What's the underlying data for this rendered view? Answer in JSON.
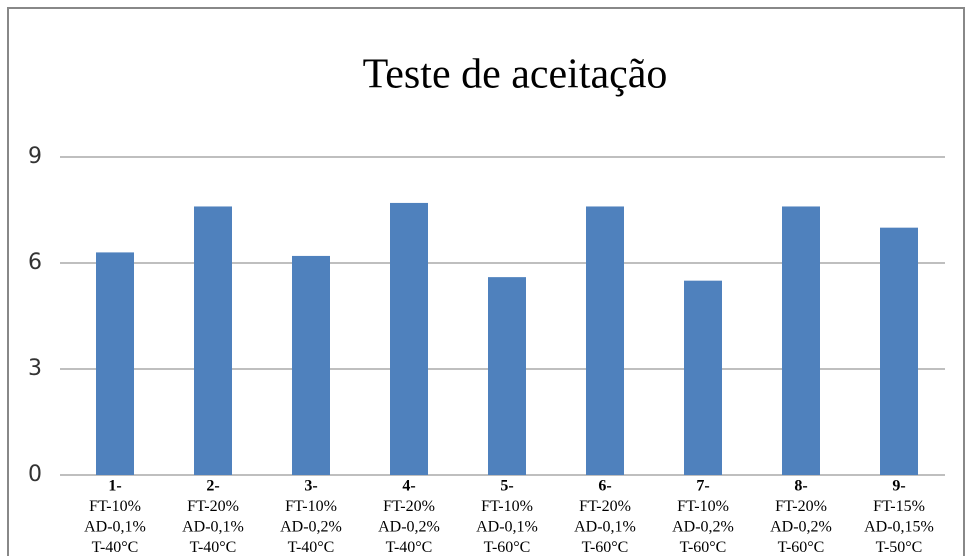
{
  "chart_data": {
    "type": "bar",
    "title": "Teste de aceitação",
    "categories": [
      [
        "1-",
        "FT-10%",
        "AD-0,1%",
        "T-40°C"
      ],
      [
        "2-",
        "FT-20%",
        "AD-0,1%",
        "T-40°C"
      ],
      [
        "3-",
        "FT-10%",
        "AD-0,2%",
        "T-40°C"
      ],
      [
        "4-",
        "FT-20%",
        "AD-0,2%",
        "T-40°C"
      ],
      [
        "5-",
        "FT-10%",
        "AD-0,1%",
        "T-60°C"
      ],
      [
        "6-",
        "FT-20%",
        "AD-0,1%",
        "T-60°C"
      ],
      [
        "7-",
        "FT-10%",
        "AD-0,2%",
        "T-60°C"
      ],
      [
        "8-",
        "FT-20%",
        "AD-0,2%",
        "T-60°C"
      ],
      [
        "9-",
        "FT-15%",
        "AD-0,15%",
        "T-50°C"
      ]
    ],
    "values": [
      6.3,
      7.6,
      6.2,
      7.7,
      5.6,
      7.6,
      5.5,
      7.6,
      7.0
    ],
    "color": "#4f81bd",
    "ylim": [
      0,
      9
    ],
    "yticks": [
      0,
      3,
      6,
      9
    ],
    "grid": true
  }
}
